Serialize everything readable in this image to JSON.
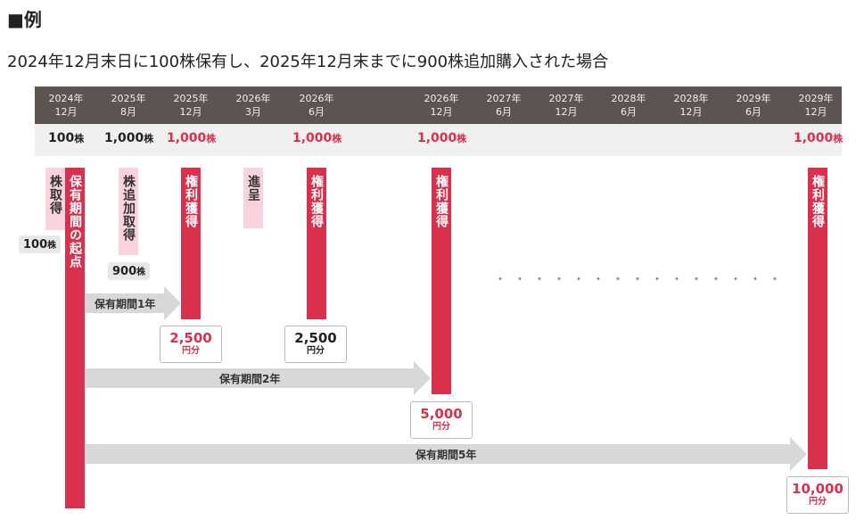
{
  "heading": "■例",
  "subtitle": "2024年12月末日に100株保有し、2025年12月末までに900株追加購入された場合",
  "timeline": [
    {
      "year": "2024年",
      "month": "12月"
    },
    {
      "year": "2025年",
      "month": "8月"
    },
    {
      "year": "2025年",
      "month": "12月"
    },
    {
      "year": "2026年",
      "month": "3月"
    },
    {
      "year": "2026年",
      "month": "6月"
    },
    {
      "year": "2026年",
      "month": "12月"
    },
    {
      "year": "2027年",
      "month": "6月"
    },
    {
      "year": "2027年",
      "month": "12月"
    },
    {
      "year": "2028年",
      "month": "6月"
    },
    {
      "year": "2028年",
      "month": "12月"
    },
    {
      "year": "2029年",
      "month": "6月"
    },
    {
      "year": "2029年",
      "month": "12月"
    }
  ],
  "shares": [
    {
      "num": "100",
      "unit": "株"
    },
    {
      "num": "1,000",
      "unit": "株"
    },
    {
      "num": "1,000",
      "unit": "株"
    },
    {
      "num": "1,000",
      "unit": "株"
    },
    {
      "num": "1,000",
      "unit": "株"
    },
    {
      "num": "1,000",
      "unit": "株"
    }
  ],
  "events": {
    "acquire": "株取得",
    "holding_start": "保有期間の起点",
    "add_acquire": "株追加取得",
    "right1": "権利獲得",
    "present": "進呈",
    "right2": "権利獲得",
    "right3": "権利獲得",
    "right4": "権利獲得"
  },
  "chips": {
    "initial": {
      "num": "100",
      "unit": "株"
    },
    "added": {
      "num": "900",
      "unit": "株"
    }
  },
  "arrows": {
    "one_year": "保有期間1年",
    "two_year": "保有期間2年",
    "five_year": "保有期間5年"
  },
  "amounts": [
    {
      "amount": "2,500",
      "unit": "円分"
    },
    {
      "amount": "2,500",
      "unit": "円分"
    },
    {
      "amount": "5,000",
      "unit": "円分"
    },
    {
      "amount": "10,000",
      "unit": "円分"
    }
  ],
  "dots": "・・・・・・・・・・・・・・・",
  "colors": {
    "accent": "#d9304d",
    "header": "#5c5450",
    "pale": "#f9d3dc"
  }
}
